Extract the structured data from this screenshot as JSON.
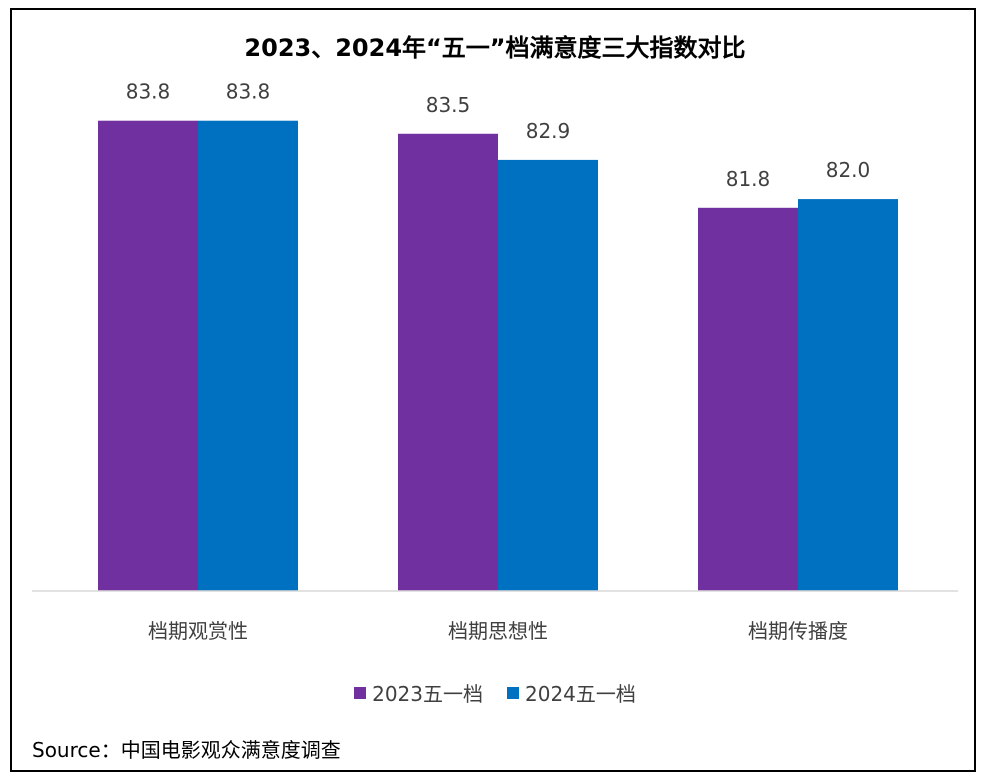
{
  "chart_data": {
    "type": "bar",
    "title": "2023、2024年“五一”档满意度三大指数对比",
    "categories": [
      "档期观赏性",
      "档期思想性",
      "档期传播度"
    ],
    "series": [
      {
        "name": "2023五一档",
        "color": "#7030A0",
        "values": [
          83.8,
          83.5,
          81.8
        ]
      },
      {
        "name": "2024五一档",
        "color": "#0070C0",
        "values": [
          83.8,
          82.9,
          82.0
        ]
      }
    ],
    "value_labels": [
      [
        "83.8",
        "83.5",
        "81.8"
      ],
      [
        "83.8",
        "82.9",
        "82.0"
      ]
    ],
    "ylim": [
      73,
      84
    ],
    "grid": false,
    "legend_position": "bottom"
  },
  "source": "Source：中国电影观众满意度调查"
}
